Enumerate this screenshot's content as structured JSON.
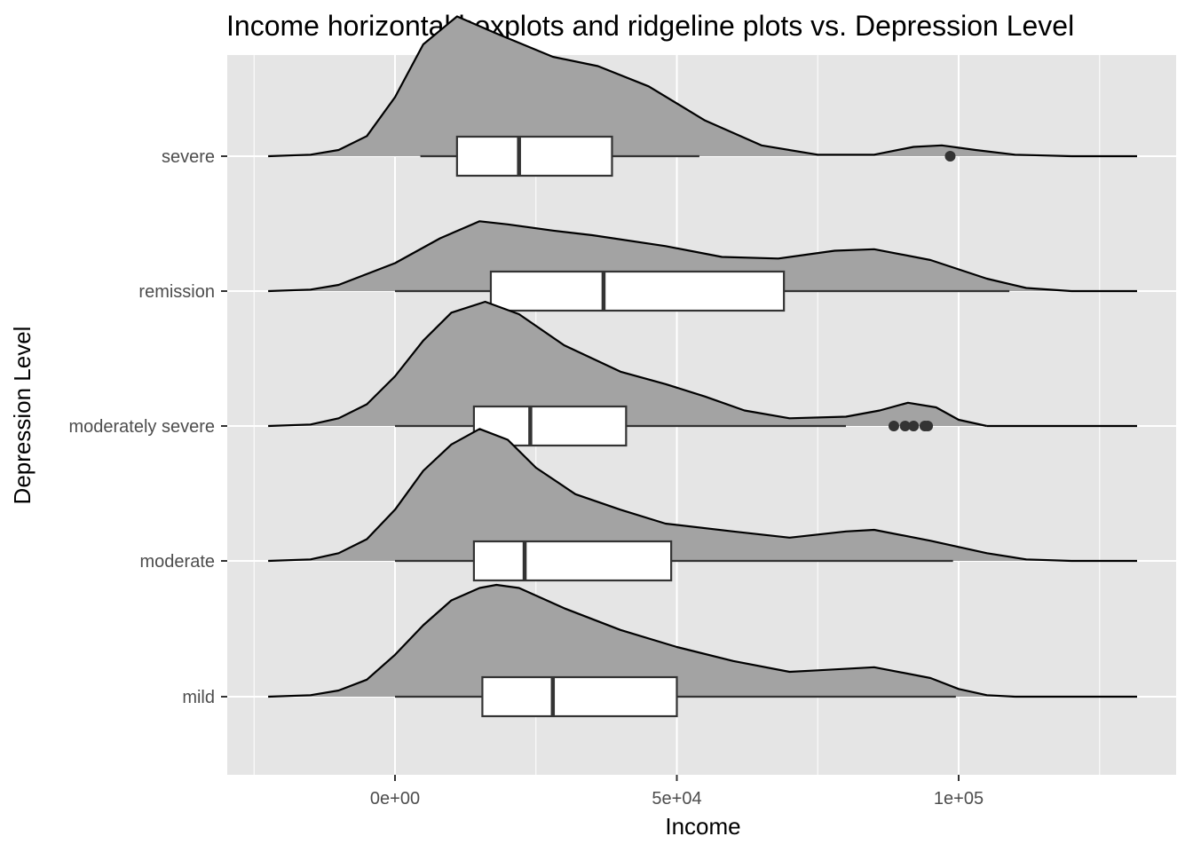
{
  "chart_data": {
    "type": "boxplot-ridgeline",
    "title": "Income horizontal boxplots and ridgeline plots vs. Depression Level",
    "xlabel": "Income",
    "ylabel": "Depression Level",
    "xlim": [
      -25000,
      132000
    ],
    "x_ticks": [
      0,
      50000,
      100000
    ],
    "x_tick_labels": [
      "0e+00",
      "5e+04",
      "1e+05"
    ],
    "grid": true,
    "colors": {
      "panel": "#e5e5e5",
      "grid": "#ffffff",
      "density_fill": "#a3a3a3",
      "box_fill": "#ffffff",
      "line": "#000000",
      "box_line": "#333333"
    },
    "categories": [
      "mild",
      "moderate",
      "moderately severe",
      "remission",
      "severe"
    ],
    "series": [
      {
        "name": "mild",
        "box": {
          "whisker_low": 0,
          "q1": 15500,
          "median": 28000,
          "q3": 50000,
          "whisker_high": 99500
        },
        "outliers": [],
        "density": [
          [
            -22500,
            0
          ],
          [
            -15000,
            0.01
          ],
          [
            -10000,
            0.04
          ],
          [
            -5000,
            0.11
          ],
          [
            0,
            0.27
          ],
          [
            5000,
            0.46
          ],
          [
            10000,
            0.62
          ],
          [
            15000,
            0.7
          ],
          [
            18000,
            0.72
          ],
          [
            22000,
            0.7
          ],
          [
            30000,
            0.57
          ],
          [
            40000,
            0.43
          ],
          [
            50000,
            0.32
          ],
          [
            60000,
            0.23
          ],
          [
            70000,
            0.16
          ],
          [
            75000,
            0.17
          ],
          [
            85000,
            0.19
          ],
          [
            95000,
            0.12
          ],
          [
            100000,
            0.05
          ],
          [
            105000,
            0.01
          ],
          [
            110000,
            0
          ]
        ]
      },
      {
        "name": "moderate",
        "box": {
          "whisker_low": 0,
          "q1": 14000,
          "median": 23000,
          "q3": 49000,
          "whisker_high": 99000
        },
        "outliers": [],
        "density": [
          [
            -22500,
            0
          ],
          [
            -15000,
            0.01
          ],
          [
            -10000,
            0.05
          ],
          [
            -5000,
            0.14
          ],
          [
            0,
            0.33
          ],
          [
            5000,
            0.58
          ],
          [
            10000,
            0.75
          ],
          [
            15000,
            0.85
          ],
          [
            20000,
            0.78
          ],
          [
            25000,
            0.6
          ],
          [
            32000,
            0.43
          ],
          [
            40000,
            0.33
          ],
          [
            48000,
            0.24
          ],
          [
            60000,
            0.19
          ],
          [
            70000,
            0.15
          ],
          [
            80000,
            0.19
          ],
          [
            85000,
            0.2
          ],
          [
            95000,
            0.13
          ],
          [
            105000,
            0.05
          ],
          [
            112000,
            0.01
          ],
          [
            120000,
            0
          ]
        ]
      },
      {
        "name": "moderately severe",
        "box": {
          "whisker_low": 0,
          "q1": 14000,
          "median": 24000,
          "q3": 41000,
          "whisker_high": 80000
        },
        "outliers": [
          88500,
          90500,
          92000,
          94000,
          94500
        ],
        "density": [
          [
            -22500,
            0
          ],
          [
            -15000,
            0.01
          ],
          [
            -10000,
            0.05
          ],
          [
            -5000,
            0.14
          ],
          [
            0,
            0.32
          ],
          [
            5000,
            0.55
          ],
          [
            10000,
            0.73
          ],
          [
            16000,
            0.8
          ],
          [
            22000,
            0.72
          ],
          [
            30000,
            0.52
          ],
          [
            40000,
            0.35
          ],
          [
            48000,
            0.27
          ],
          [
            55000,
            0.19
          ],
          [
            62000,
            0.1
          ],
          [
            70000,
            0.05
          ],
          [
            80000,
            0.06
          ],
          [
            86000,
            0.1
          ],
          [
            91000,
            0.15
          ],
          [
            96000,
            0.12
          ],
          [
            100000,
            0.04
          ],
          [
            105000,
            0
          ]
        ]
      },
      {
        "name": "remission",
        "box": {
          "whisker_low": 0,
          "q1": 17000,
          "median": 37000,
          "q3": 69000,
          "whisker_high": 109000
        },
        "outliers": [],
        "density": [
          [
            -22500,
            0
          ],
          [
            -15000,
            0.01
          ],
          [
            -10000,
            0.04
          ],
          [
            0,
            0.18
          ],
          [
            8000,
            0.34
          ],
          [
            15000,
            0.45
          ],
          [
            20000,
            0.43
          ],
          [
            28000,
            0.39
          ],
          [
            35000,
            0.36
          ],
          [
            48000,
            0.29
          ],
          [
            58000,
            0.22
          ],
          [
            68000,
            0.21
          ],
          [
            78000,
            0.26
          ],
          [
            85000,
            0.27
          ],
          [
            95000,
            0.2
          ],
          [
            105000,
            0.08
          ],
          [
            112000,
            0.02
          ],
          [
            120000,
            0
          ]
        ]
      },
      {
        "name": "severe",
        "box": {
          "whisker_low": 4500,
          "q1": 11000,
          "median": 22000,
          "q3": 38500,
          "whisker_high": 54000
        },
        "outliers": [
          98500
        ],
        "density": [
          [
            -22500,
            0
          ],
          [
            -15000,
            0.01
          ],
          [
            -10000,
            0.04
          ],
          [
            -5000,
            0.13
          ],
          [
            0,
            0.38
          ],
          [
            5000,
            0.72
          ],
          [
            11000,
            0.9
          ],
          [
            18000,
            0.79
          ],
          [
            28000,
            0.64
          ],
          [
            36000,
            0.58
          ],
          [
            45000,
            0.45
          ],
          [
            55000,
            0.23
          ],
          [
            65000,
            0.07
          ],
          [
            75000,
            0.01
          ],
          [
            85000,
            0.01
          ],
          [
            92000,
            0.06
          ],
          [
            97000,
            0.07
          ],
          [
            103000,
            0.04
          ],
          [
            110000,
            0.01
          ],
          [
            120000,
            0
          ]
        ]
      }
    ]
  }
}
